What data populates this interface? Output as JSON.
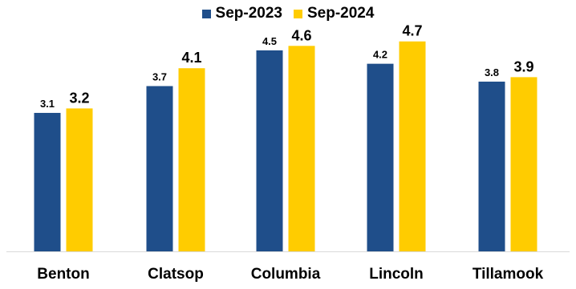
{
  "chart_data": {
    "type": "bar",
    "categories": [
      "Benton",
      "Clatsop",
      "Columbia",
      "Lincoln",
      "Tillamook"
    ],
    "series": [
      {
        "name": "Sep-2023",
        "values": [
          3.1,
          3.7,
          4.5,
          4.2,
          3.8
        ],
        "color": "#1f4e8a"
      },
      {
        "name": "Sep-2024",
        "values": [
          3.2,
          4.1,
          4.6,
          4.7,
          3.9
        ],
        "color": "#ffcc00"
      }
    ],
    "value_labels": {
      "Sep-2023": [
        "3.1",
        "3.7",
        "4.5",
        "4.2",
        "3.8"
      ],
      "Sep-2024": [
        "3.2",
        "4.1",
        "4.6",
        "4.7",
        "3.9"
      ]
    },
    "ylim": [
      0,
      5.0
    ],
    "grid": false,
    "legend_position": "top-center"
  }
}
